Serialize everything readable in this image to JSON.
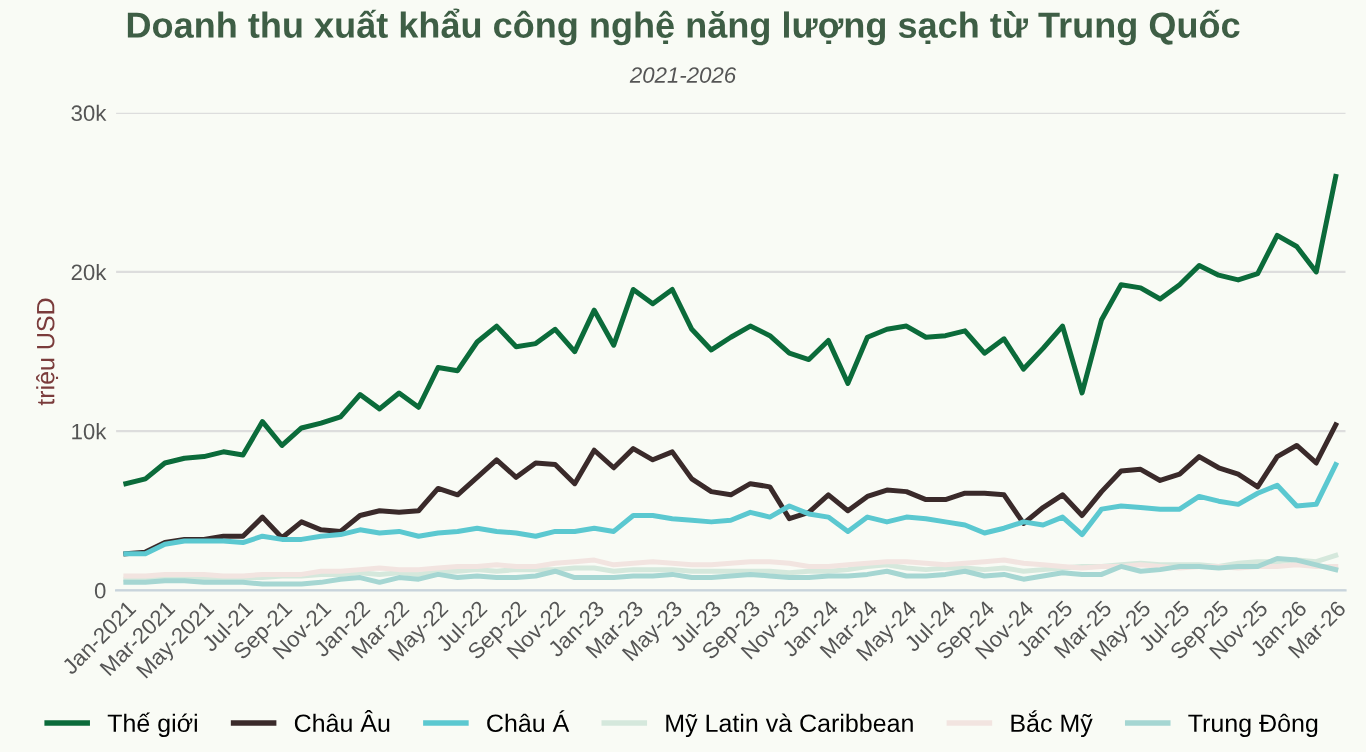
{
  "chart_data": {
    "type": "line",
    "title": "Doanh thu xuất khẩu công nghệ năng lượng sạch từ Trung Quốc",
    "subtitle": "2021-2026",
    "ylabel": "triệu USD",
    "categories": [
      "Jan-2021",
      null,
      "Mar-2021",
      null,
      "May-2021",
      null,
      "Jul-21",
      null,
      "Sep-21",
      null,
      "Nov-21",
      null,
      "Jan-22",
      null,
      "Mar-22",
      null,
      "May-22",
      null,
      "Jul-22",
      null,
      "Sep-22",
      null,
      "Nov-22",
      null,
      "Jan-23",
      null,
      "Mar-23",
      null,
      "May-23",
      null,
      "Jul-23",
      null,
      "Sep-23",
      null,
      "Nov-23",
      null,
      "Jan-24",
      null,
      "Mar-24",
      null,
      "May-24",
      null,
      "Jul-24",
      null,
      "Sep-24",
      null,
      "Nov-24",
      null,
      "Jan-25",
      null,
      "Mar-25",
      null,
      "May-25",
      null,
      "Jul-25",
      null,
      "Sep-25",
      null,
      "Nov-25",
      null,
      "Jan-26",
      null,
      "Mar-26"
    ],
    "ylim": [
      0,
      30000
    ],
    "yticks": [
      {
        "value": 0,
        "label": "0"
      },
      {
        "value": 10000,
        "label": "10k"
      },
      {
        "value": 20000,
        "label": "20k"
      },
      {
        "value": 30000,
        "label": "30k"
      }
    ],
    "grid": "y",
    "legend": "bottom",
    "marker": "none",
    "line_style": "solid",
    "series": [
      {
        "name": "Thế giới",
        "color": "#0b6b3a",
        "values": [
          6700,
          7000,
          8000,
          8300,
          8400,
          8700,
          8500,
          10600,
          9100,
          10200,
          10500,
          10900,
          12300,
          11400,
          12400,
          11500,
          14000,
          13800,
          15600,
          16600,
          15300,
          15500,
          16400,
          15000,
          17600,
          15400,
          18900,
          18000,
          18900,
          16400,
          15100,
          15900,
          16600,
          16000,
          14900,
          14500,
          15700,
          13000,
          15900,
          16400,
          16600,
          15900,
          16000,
          16300,
          14900,
          15800,
          13900,
          15200,
          16600,
          12400,
          17000,
          19200,
          19000,
          18300,
          19200,
          20400,
          19800,
          19500,
          19900,
          22300,
          21600,
          20000,
          26000
        ]
      },
      {
        "name": "Châu Âu",
        "color": "#3a2a2a",
        "values": [
          2300,
          2400,
          3000,
          3200,
          3200,
          3400,
          3400,
          4600,
          3300,
          4300,
          3800,
          3700,
          4700,
          5000,
          4900,
          5000,
          6400,
          6000,
          7100,
          8200,
          7100,
          8000,
          7900,
          6700,
          8800,
          7700,
          8900,
          8200,
          8700,
          7000,
          6200,
          6000,
          6700,
          6500,
          4500,
          4900,
          6000,
          5000,
          5900,
          6300,
          6200,
          5700,
          5700,
          6100,
          6100,
          6000,
          4200,
          5200,
          6000,
          4700,
          6200,
          7500,
          7600,
          6900,
          7300,
          8400,
          7700,
          7300,
          6500,
          8400,
          9100,
          8000,
          10400
        ]
      },
      {
        "name": "Châu Á",
        "color": "#5bc8d0",
        "values": [
          2300,
          2300,
          2900,
          3100,
          3100,
          3100,
          3000,
          3400,
          3200,
          3200,
          3400,
          3500,
          3800,
          3600,
          3700,
          3400,
          3600,
          3700,
          3900,
          3700,
          3600,
          3400,
          3700,
          3700,
          3900,
          3700,
          4700,
          4700,
          4500,
          4400,
          4300,
          4400,
          4900,
          4600,
          5300,
          4800,
          4600,
          3700,
          4600,
          4300,
          4600,
          4500,
          4300,
          4100,
          3600,
          3900,
          4300,
          4100,
          4600,
          3500,
          5100,
          5300,
          5200,
          5100,
          5100,
          5900,
          5600,
          5400,
          6100,
          6600,
          5300,
          5400,
          7900
        ]
      },
      {
        "name": "Mỹ Latin và Caribbean",
        "color": "#d5e8dc",
        "values": [
          700,
          700,
          800,
          800,
          800,
          800,
          800,
          800,
          900,
          900,
          1000,
          1000,
          1100,
          1000,
          1100,
          1000,
          1200,
          1200,
          1300,
          1200,
          1300,
          1300,
          1300,
          1400,
          1400,
          1200,
          1300,
          1300,
          1300,
          1200,
          1200,
          1200,
          1200,
          1200,
          1100,
          1200,
          1200,
          1300,
          1500,
          1600,
          1400,
          1300,
          1400,
          1400,
          1300,
          1400,
          1200,
          1300,
          1400,
          1500,
          1500,
          1600,
          1700,
          1600,
          1600,
          1600,
          1500,
          1700,
          1800,
          1800,
          1900,
          1800,
          2200
        ]
      },
      {
        "name": "Bắc Mỹ",
        "color": "#f2e4e0",
        "values": [
          900,
          900,
          1000,
          1000,
          1000,
          900,
          900,
          1000,
          1000,
          1000,
          1200,
          1200,
          1300,
          1400,
          1300,
          1300,
          1400,
          1500,
          1500,
          1600,
          1500,
          1500,
          1700,
          1800,
          1900,
          1600,
          1700,
          1800,
          1700,
          1600,
          1600,
          1700,
          1800,
          1800,
          1700,
          1500,
          1500,
          1600,
          1700,
          1800,
          1800,
          1700,
          1600,
          1700,
          1800,
          1900,
          1700,
          1600,
          1500,
          1400,
          1500,
          1500,
          1600,
          1500,
          1400,
          1500,
          1500,
          1400,
          1500,
          1500,
          1600,
          1500,
          1500
        ]
      },
      {
        "name": "Trung Đông",
        "color": "#a5d6d2",
        "values": [
          500,
          500,
          600,
          600,
          500,
          500,
          500,
          400,
          400,
          400,
          500,
          700,
          800,
          500,
          800,
          700,
          1000,
          800,
          900,
          800,
          800,
          900,
          1200,
          800,
          800,
          800,
          900,
          900,
          1000,
          800,
          800,
          900,
          1000,
          900,
          800,
          800,
          900,
          900,
          1000,
          1200,
          900,
          900,
          1000,
          1200,
          900,
          1000,
          700,
          900,
          1100,
          1000,
          1000,
          1500,
          1200,
          1300,
          1500,
          1500,
          1400,
          1500,
          1500,
          2000,
          1900,
          1600,
          1300
        ]
      }
    ]
  }
}
